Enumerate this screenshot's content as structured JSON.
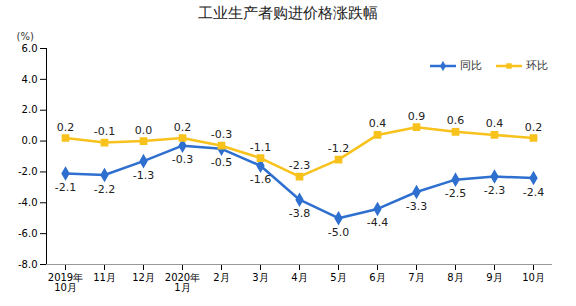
{
  "chart_data": {
    "type": "line",
    "title": "工业生产者购进价格涨跌幅",
    "y_label": "(%)",
    "categories": [
      "2019年\n10月",
      "11月",
      "12月",
      "2020年\n1月",
      "2月",
      "3月",
      "4月",
      "5月",
      "6月",
      "7月",
      "8月",
      "9月",
      "10月"
    ],
    "series": [
      {
        "name": "同比",
        "color": "#2e6fcf",
        "marker": "diamond",
        "values": [
          -2.1,
          -2.2,
          -1.3,
          -0.3,
          -0.5,
          -1.6,
          -3.8,
          -5.0,
          -4.4,
          -3.3,
          -2.5,
          -2.3,
          -2.4
        ],
        "value_labels": [
          "-2.1",
          "-2.2",
          "-1.3",
          "-0.3",
          "-0.5",
          "-1.6",
          "-3.8",
          "-5.0",
          "-4.4",
          "-3.3",
          "-2.5",
          "-2.3",
          "-2.4"
        ]
      },
      {
        "name": "环比",
        "color": "#f8c21c",
        "marker": "square",
        "values": [
          0.2,
          -0.1,
          0.0,
          0.2,
          -0.3,
          -1.1,
          -2.3,
          -1.2,
          0.4,
          0.9,
          0.6,
          0.4,
          0.2
        ],
        "value_labels": [
          "0.2",
          "-0.1",
          "0.0",
          "0.2",
          "-0.3",
          "-1.1",
          "-2.3",
          "-1.2",
          "0.4",
          "0.9",
          "0.6",
          "0.4",
          "0.2"
        ]
      }
    ],
    "ylim": [
      -8,
      6
    ],
    "yticks": [
      {
        "value": -8,
        "label": "-8.0"
      },
      {
        "value": -6,
        "label": "-6.0"
      },
      {
        "value": -4,
        "label": "-4.0"
      },
      {
        "value": -2,
        "label": "-2.0"
      },
      {
        "value": 0,
        "label": "0.0"
      },
      {
        "value": 2,
        "label": "2.0"
      },
      {
        "value": 4,
        "label": "4.0"
      },
      {
        "value": 6,
        "label": "6.0"
      }
    ],
    "grid": false,
    "legend": "upper right",
    "data_labels": true
  }
}
